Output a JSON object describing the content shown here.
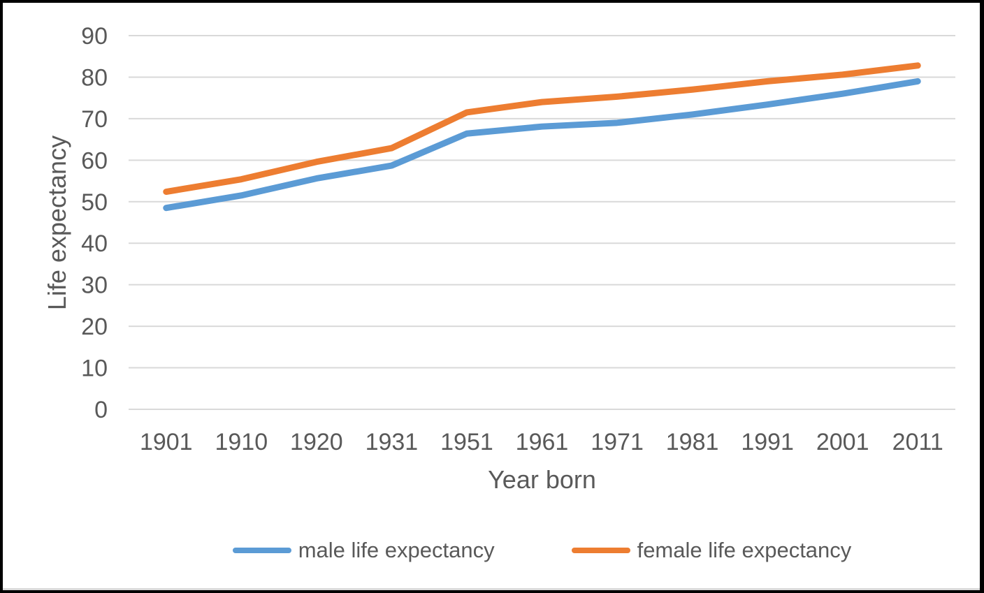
{
  "chart_data": {
    "type": "line",
    "title": "",
    "xlabel": "Year born",
    "ylabel": "Life expectancy",
    "categories": [
      "1901",
      "1910",
      "1920",
      "1931",
      "1951",
      "1961",
      "1971",
      "1981",
      "1991",
      "2001",
      "2011"
    ],
    "series": [
      {
        "name": "male life expectancy",
        "color": "#5B9BD5",
        "values": [
          48.5,
          51.5,
          55.6,
          58.7,
          66.4,
          68.1,
          69.0,
          71.0,
          73.4,
          76.0,
          79.0
        ]
      },
      {
        "name": "female life expectancy",
        "color": "#ED7D31",
        "values": [
          52.4,
          55.4,
          59.6,
          62.9,
          71.5,
          74.0,
          75.3,
          77.0,
          79.0,
          80.6,
          82.8
        ]
      }
    ],
    "ylim": [
      0,
      90
    ],
    "ytick_step": 10,
    "yticks": [
      "0",
      "10",
      "20",
      "30",
      "40",
      "50",
      "60",
      "70",
      "80",
      "90"
    ],
    "grid": "horizontal",
    "legend_position": "bottom",
    "colors": {
      "gridline": "#D9D9D9",
      "text": "#595959",
      "frame": "#000000",
      "background": "#FFFFFF"
    }
  }
}
